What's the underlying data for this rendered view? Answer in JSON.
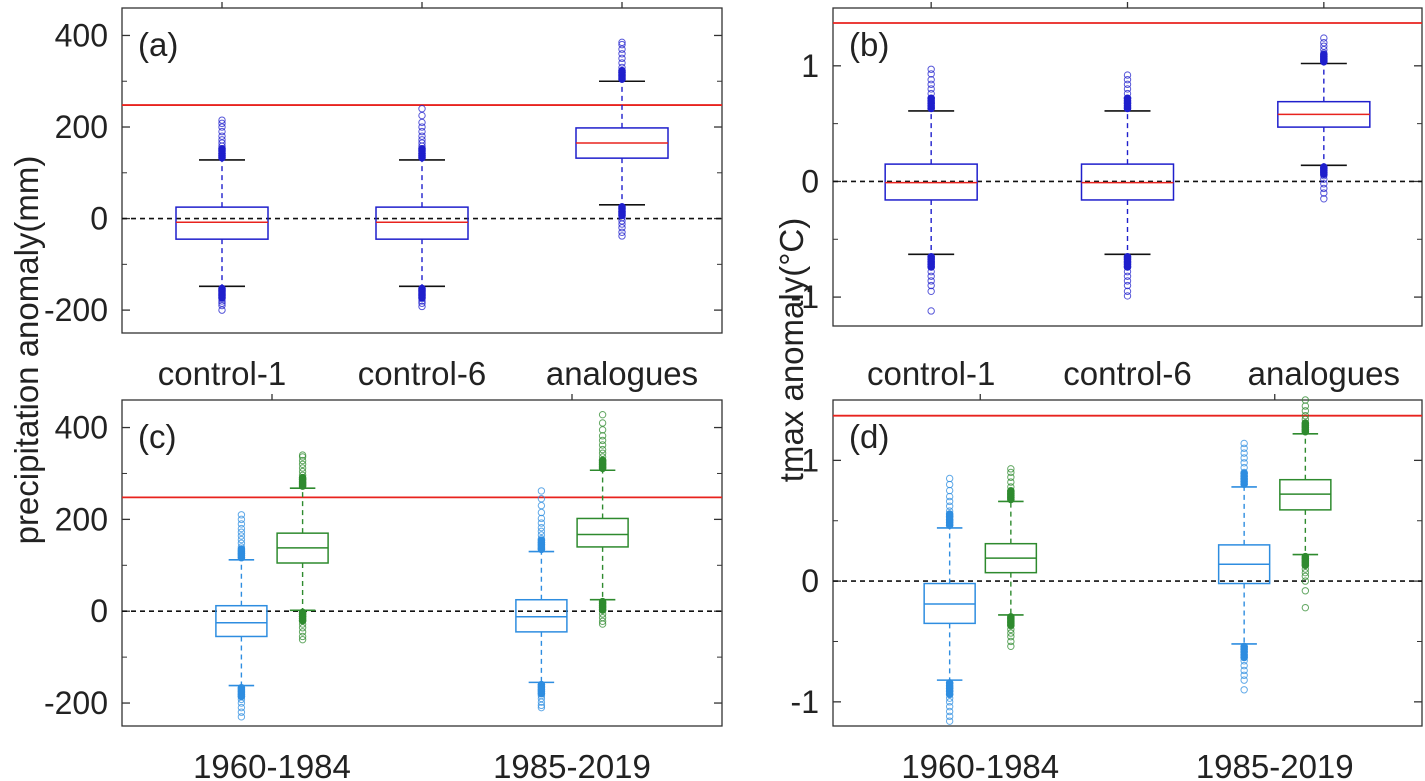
{
  "figure": {
    "ylabel_left": "precipitation anomaly(mm)",
    "ylabel_right": "tmax anomaly(°C)"
  },
  "chart_data": [
    {
      "id": "a",
      "panel_label": "(a)",
      "type": "boxplot",
      "categories": [
        "control-1",
        "control-6",
        "analogues"
      ],
      "yticks": [
        "400",
        "200",
        "0",
        "-200"
      ],
      "ylim": [
        -250,
        460
      ],
      "zero_line": 0,
      "reference_line": 248,
      "colors": {
        "box": "#1f1fcc",
        "median": "#e8231e",
        "outlier": "#1f1fcc",
        "reference": "#e8231e"
      },
      "boxes": [
        {
          "q1": -45,
          "median": -8,
          "q3": 25,
          "whisker_low": -148,
          "whisker_high": 128,
          "out_low": [
            -155,
            -160,
            -165,
            -170,
            -175,
            -180,
            -185,
            -190,
            -200
          ],
          "out_high": [
            135,
            142,
            150,
            158,
            165,
            172,
            180,
            190,
            200,
            208,
            215
          ]
        },
        {
          "q1": -45,
          "median": -8,
          "q3": 25,
          "whisker_low": -148,
          "whisker_high": 128,
          "out_low": [
            -155,
            -160,
            -165,
            -170,
            -175,
            -180,
            -185,
            -192
          ],
          "out_high": [
            135,
            142,
            150,
            158,
            165,
            172,
            180,
            190,
            200,
            210,
            225,
            240
          ]
        },
        {
          "q1": 132,
          "median": 165,
          "q3": 198,
          "whisker_low": 30,
          "whisker_high": 300,
          "out_low": [
            22,
            15,
            8,
            2,
            -5,
            -12,
            -20,
            -30,
            -38
          ],
          "out_high": [
            306,
            312,
            320,
            330,
            340,
            350,
            360,
            370,
            380,
            385
          ]
        }
      ]
    },
    {
      "id": "b",
      "panel_label": "(b)",
      "type": "boxplot",
      "categories": [
        "control-1",
        "control-6",
        "analogues"
      ],
      "yticks": [
        "1",
        "0",
        "-1"
      ],
      "ylim": [
        -1.25,
        1.5
      ],
      "zero_line": 0,
      "reference_line": 1.37,
      "colors": {
        "box": "#1f1fcc",
        "median": "#e8231e",
        "outlier": "#1f1fcc",
        "reference": "#e8231e"
      },
      "boxes": [
        {
          "q1": -0.16,
          "median": -0.01,
          "q3": 0.15,
          "whisker_low": -0.63,
          "whisker_high": 0.61,
          "out_low": [
            -0.66,
            -0.7,
            -0.74,
            -0.78,
            -0.82,
            -0.86,
            -0.9,
            -0.95,
            -1.12
          ],
          "out_high": [
            0.64,
            0.68,
            0.72,
            0.76,
            0.8,
            0.84,
            0.88,
            0.93,
            0.97
          ]
        },
        {
          "q1": -0.16,
          "median": -0.01,
          "q3": 0.15,
          "whisker_low": -0.63,
          "whisker_high": 0.61,
          "out_low": [
            -0.66,
            -0.7,
            -0.74,
            -0.78,
            -0.82,
            -0.86,
            -0.9,
            -0.95,
            -0.99
          ],
          "out_high": [
            0.64,
            0.68,
            0.72,
            0.76,
            0.8,
            0.84,
            0.88,
            0.92
          ]
        },
        {
          "q1": 0.47,
          "median": 0.58,
          "q3": 0.69,
          "whisker_low": 0.14,
          "whisker_high": 1.02,
          "out_low": [
            0.11,
            0.08,
            0.05,
            0.02,
            -0.02,
            -0.06,
            -0.1,
            -0.15
          ],
          "out_high": [
            1.05,
            1.08,
            1.11,
            1.14,
            1.17,
            1.2,
            1.24
          ]
        }
      ]
    },
    {
      "id": "c",
      "panel_label": "(c)",
      "type": "boxplot",
      "categories": [
        "1960-1984",
        "1985-2019"
      ],
      "yticks": [
        "400",
        "200",
        "0",
        "-200"
      ],
      "ylim": [
        -250,
        460
      ],
      "zero_line": 0,
      "reference_line": 248,
      "colors": {
        "reference": "#e8231e"
      },
      "boxes": [
        {
          "group": 0,
          "color": "#2e8de0",
          "q1": -55,
          "median": -25,
          "q3": 12,
          "whisker_low": -162,
          "whisker_high": 112,
          "out_low": [
            -168,
            -174,
            -180,
            -186,
            -192,
            -200,
            -210,
            -220,
            -230
          ],
          "out_high": [
            118,
            125,
            132,
            140,
            148,
            156,
            164,
            172,
            180,
            190,
            200,
            210
          ]
        },
        {
          "group": 0,
          "color": "#2e8a2e",
          "q1": 105,
          "median": 138,
          "q3": 170,
          "whisker_low": 2,
          "whisker_high": 268,
          "out_low": [
            -5,
            -12,
            -20,
            -28,
            -36,
            -45,
            -55,
            -62
          ],
          "out_high": [
            274,
            280,
            288,
            296,
            304,
            312,
            320,
            328,
            336,
            340
          ]
        },
        {
          "group": 1,
          "color": "#2e8de0",
          "q1": -45,
          "median": -12,
          "q3": 25,
          "whisker_low": -155,
          "whisker_high": 130,
          "out_low": [
            -160,
            -166,
            -172,
            -178,
            -184,
            -190,
            -198,
            -205,
            -210
          ],
          "out_high": [
            136,
            143,
            150,
            158,
            166,
            174,
            182,
            192,
            202,
            215,
            230,
            245,
            262
          ]
        },
        {
          "group": 1,
          "color": "#2e8a2e",
          "q1": 140,
          "median": 167,
          "q3": 202,
          "whisker_low": 25,
          "whisker_high": 307,
          "out_low": [
            18,
            10,
            2,
            -6,
            -14,
            -22,
            -28
          ],
          "out_high": [
            313,
            320,
            328,
            336,
            344,
            352,
            362,
            372,
            382,
            395,
            410,
            428
          ]
        }
      ]
    },
    {
      "id": "d",
      "panel_label": "(d)",
      "type": "boxplot",
      "categories": [
        "1960-1984",
        "1985-2019"
      ],
      "yticks": [
        "1",
        "0",
        "-1"
      ],
      "ylim": [
        -1.2,
        1.5
      ],
      "zero_line": 0,
      "reference_line": 1.37,
      "colors": {
        "reference": "#e8231e"
      },
      "boxes": [
        {
          "group": 0,
          "color": "#2e8de0",
          "q1": -0.35,
          "median": -0.19,
          "q3": -0.02,
          "whisker_low": -0.82,
          "whisker_high": 0.44,
          "out_low": [
            -0.85,
            -0.88,
            -0.91,
            -0.94,
            -0.97,
            -1.0,
            -1.04,
            -1.08,
            -1.12,
            -1.16
          ],
          "out_high": [
            0.47,
            0.5,
            0.54,
            0.58,
            0.62,
            0.66,
            0.7,
            0.75,
            0.8,
            0.85
          ]
        },
        {
          "group": 0,
          "color": "#2e8a2e",
          "q1": 0.07,
          "median": 0.19,
          "q3": 0.31,
          "whisker_low": -0.28,
          "whisker_high": 0.66,
          "out_low": [
            -0.31,
            -0.34,
            -0.37,
            -0.4,
            -0.43,
            -0.46,
            -0.5,
            -0.54
          ],
          "out_high": [
            0.69,
            0.72,
            0.75,
            0.78,
            0.82,
            0.86,
            0.9,
            0.93
          ]
        },
        {
          "group": 1,
          "color": "#2e8de0",
          "q1": -0.02,
          "median": 0.14,
          "q3": 0.3,
          "whisker_low": -0.52,
          "whisker_high": 0.78,
          "out_low": [
            -0.55,
            -0.58,
            -0.62,
            -0.66,
            -0.7,
            -0.74,
            -0.78,
            -0.82,
            -0.9
          ],
          "out_high": [
            0.81,
            0.84,
            0.87,
            0.9,
            0.94,
            0.98,
            1.02,
            1.06,
            1.1,
            1.14
          ]
        },
        {
          "group": 1,
          "color": "#2e8a2e",
          "q1": 0.59,
          "median": 0.72,
          "q3": 0.84,
          "whisker_low": 0.22,
          "whisker_high": 1.22,
          "out_low": [
            0.19,
            0.16,
            0.13,
            0.1,
            0.07,
            0.04,
            0.0,
            -0.08,
            -0.22
          ],
          "out_high": [
            1.25,
            1.28,
            1.31,
            1.34,
            1.37,
            1.41,
            1.45,
            1.5
          ]
        }
      ]
    }
  ]
}
